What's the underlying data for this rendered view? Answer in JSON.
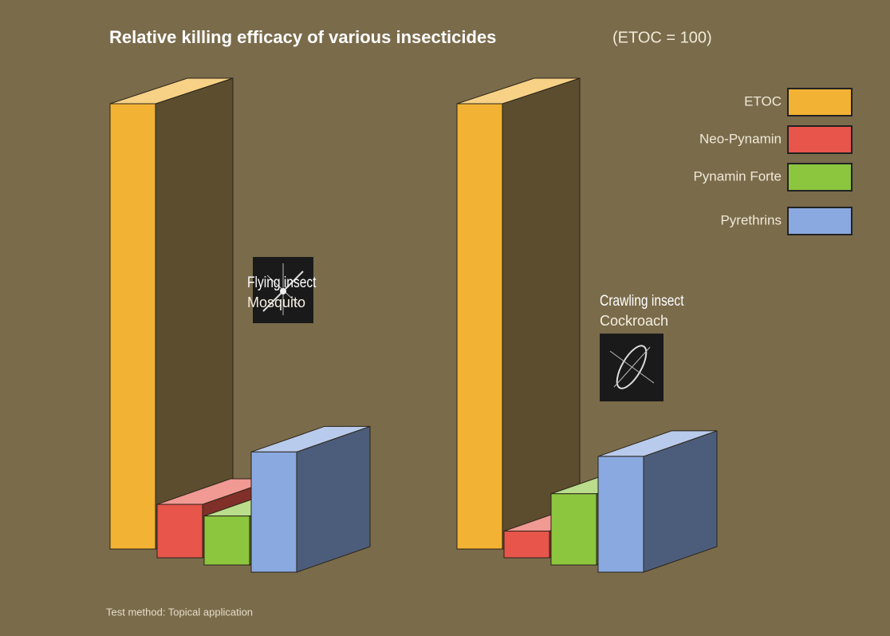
{
  "chart_data": {
    "type": "bar3d",
    "title": "Relative killing efficacy of various insecticides",
    "subtitle": "(ETOC = 100)",
    "categories": [
      "Mosquito",
      "Cockroach"
    ],
    "category_groups": [
      "Flying insect",
      "Crawling insect"
    ],
    "series": [
      {
        "name": "ETOC",
        "color": "#f2b233",
        "values": [
          100,
          100
        ]
      },
      {
        "name": "Neo-Pynamin",
        "color": "#e8554b",
        "values": [
          12,
          6
        ]
      },
      {
        "name": "Pynamin Forte",
        "color": "#8cc63f",
        "values": [
          11,
          16
        ]
      },
      {
        "name": "Pyrethrins",
        "color": "#8aa9e0",
        "values": [
          27,
          26
        ]
      }
    ],
    "legend": "upper right",
    "footnote": "Test method: Topical application"
  }
}
